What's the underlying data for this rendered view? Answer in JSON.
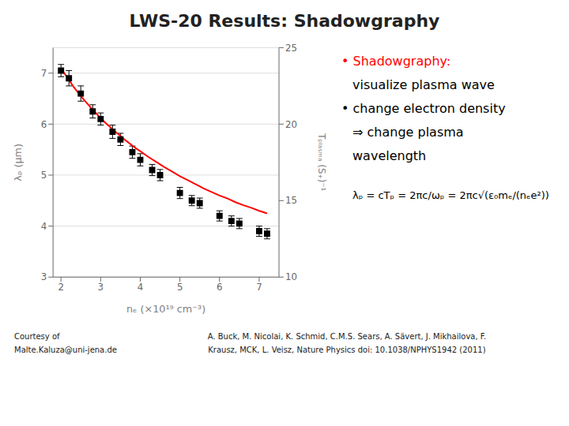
{
  "chart_data": {
    "type": "scatter",
    "title": "LWS-20 Results: Shadowgraphy",
    "x_label": "nₑ (×10¹⁹ cm⁻³)",
    "y_label": "λₚ (μm)",
    "y2_label": "Tₚₗₐₛₘₐ (S₊)⁻¹",
    "xlim": [
      1.8,
      7.5
    ],
    "xticks": [
      2,
      3,
      4,
      5,
      6,
      7
    ],
    "ylim": [
      3.0,
      7.5
    ],
    "yticks": [
      3,
      4,
      5,
      6,
      7
    ],
    "y2lim": [
      10,
      25
    ],
    "y2ticks": [
      10,
      15,
      20,
      25
    ],
    "grid": true,
    "series": [
      {
        "type": "scatter",
        "marker": "square",
        "color": "#000000",
        "x": [
          2.0,
          2.2,
          2.5,
          2.8,
          3.0,
          3.3,
          3.5,
          3.8,
          4.0,
          4.3,
          4.5,
          5.0,
          5.3,
          5.5,
          6.0,
          6.3,
          6.5,
          7.0,
          7.2
        ],
        "values": [
          7.05,
          6.9,
          6.6,
          6.25,
          6.1,
          5.85,
          5.7,
          5.45,
          5.3,
          5.1,
          5.0,
          4.65,
          4.5,
          4.45,
          4.2,
          4.1,
          4.05,
          3.9,
          3.85
        ],
        "yerr": [
          0.12,
          0.15,
          0.15,
          0.13,
          0.12,
          0.13,
          0.12,
          0.12,
          0.12,
          0.11,
          0.11,
          0.11,
          0.1,
          0.1,
          0.1,
          0.1,
          0.1,
          0.1,
          0.1
        ]
      },
      {
        "type": "line",
        "line_style": "solid",
        "color": "#ff0000",
        "x": [
          2.0,
          2.1,
          2.2,
          2.3,
          2.4,
          2.5,
          2.6,
          2.7,
          2.8,
          2.9,
          3.0,
          3.1,
          3.2,
          3.3,
          3.4,
          3.5,
          3.6,
          3.7,
          3.8,
          3.9,
          4.0,
          4.2,
          4.4,
          4.6,
          4.8,
          5.0,
          5.2,
          5.4,
          5.6,
          5.8,
          6.0,
          6.2,
          6.4,
          6.6,
          6.8,
          7.0,
          7.2
        ],
        "values": [
          7.1,
          6.98,
          6.87,
          6.75,
          6.65,
          6.55,
          6.46,
          6.37,
          6.28,
          6.2,
          6.12,
          6.04,
          5.97,
          5.9,
          5.83,
          5.77,
          5.7,
          5.64,
          5.58,
          5.52,
          5.47,
          5.36,
          5.26,
          5.16,
          5.07,
          4.98,
          4.9,
          4.82,
          4.74,
          4.67,
          4.6,
          4.54,
          4.47,
          4.41,
          4.36,
          4.3,
          4.25
        ]
      }
    ],
    "annotations": [
      {
        "text": "• Shadowgraphy:",
        "color": "#ff0000"
      },
      {
        "text": "visualize plasma wave",
        "color": "#000000"
      },
      {
        "text": "• change electron density",
        "color": "#000000"
      },
      {
        "text": "⇒ change plasma",
        "color": "#000000"
      },
      {
        "text": "wavelength",
        "color": "#000000"
      },
      {
        "text": "λₚ = cTₚ = 2πc/ωₚ = 2πc√(ε₀mₑ/(nₑe²))",
        "color": "#000000"
      }
    ],
    "footnotes": [
      "Courtesy of",
      "Malte.Kaluza@uni-jena.de",
      "A. Buck, M. Nicolai, K. Schmid, C.M.S. Sears, A. Sävert, J. Mikhailova, F.",
      "Krausz, MCK, L. Veisz, Nature Physics doi: 10.1038/NPHYS1942 (2011)"
    ]
  }
}
